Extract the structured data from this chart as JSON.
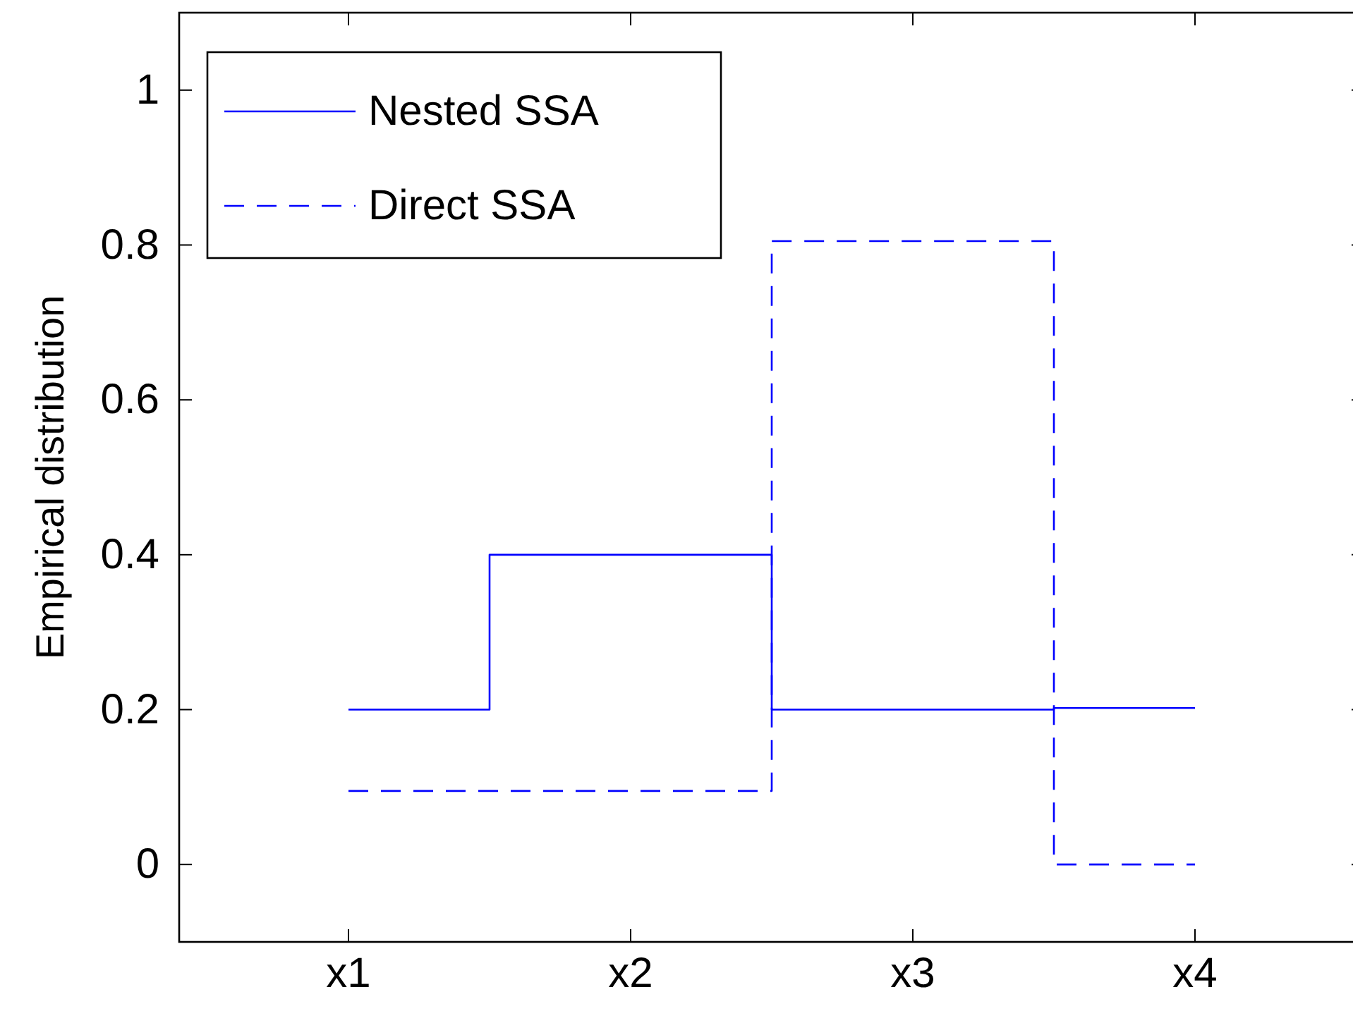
{
  "chart_data": {
    "type": "step",
    "ylabel": "Empirical distribution",
    "categories": [
      "x1",
      "x2",
      "x3",
      "x4"
    ],
    "series": [
      {
        "name": "Nested SSA",
        "color": "#0000ff",
        "line_style": "solid",
        "values": [
          0.2,
          0.4,
          0.2,
          0.202
        ]
      },
      {
        "name": "Direct SSA",
        "color": "#0000ff",
        "line_style": "dashed",
        "values": [
          0.095,
          0.095,
          0.805,
          0
        ]
      }
    ],
    "ylim": [
      -0.1,
      1.1
    ],
    "yticks": [
      0,
      0.2,
      0.4,
      0.6,
      0.8,
      1
    ],
    "legend": "top left"
  }
}
